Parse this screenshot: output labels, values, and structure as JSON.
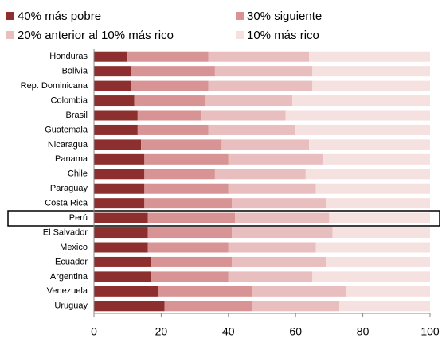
{
  "chart_data": {
    "type": "stacked_bar_horizontal",
    "categories": [
      "Honduras",
      "Bolivia",
      "Rep. Dominicana",
      "Colombia",
      "Brasil",
      "Guatemala",
      "Nicaragua",
      "Panama",
      "Chile",
      "Paraguay",
      "Costa Rica",
      "Perú",
      "El Salvador",
      "Mexico",
      "Ecuador",
      "Argentina",
      "Venezuela",
      "Uruguay"
    ],
    "series": [
      {
        "name": "40% más pobre",
        "color": "#8e2f2f",
        "values": [
          10,
          11,
          11,
          12,
          13,
          13,
          14,
          15,
          15,
          15,
          15,
          16,
          16,
          16,
          17,
          17,
          19,
          21
        ]
      },
      {
        "name": "30% siguiente",
        "color": "#d89494",
        "values": [
          24,
          25,
          23,
          21,
          19,
          21,
          24,
          25,
          21,
          25,
          26,
          26,
          25,
          24,
          24,
          23,
          28,
          26
        ]
      },
      {
        "name": "20% anterior al 10% más rico",
        "color": "#e9bebe",
        "values": [
          30,
          29,
          31,
          26,
          25,
          26,
          26,
          28,
          27,
          26,
          28,
          28,
          30,
          26,
          28,
          25,
          28,
          26
        ]
      },
      {
        "name": "10% más rico",
        "color": "#f6e1e1",
        "values": [
          36,
          35,
          35,
          41,
          43,
          40,
          36,
          32,
          37,
          34,
          31,
          30,
          29,
          34,
          31,
          35,
          25,
          27
        ]
      }
    ],
    "xlim": [
      0,
      100
    ],
    "xticks": [
      0,
      20,
      40,
      60,
      80,
      100
    ],
    "grid": false,
    "legend": "top"
  }
}
